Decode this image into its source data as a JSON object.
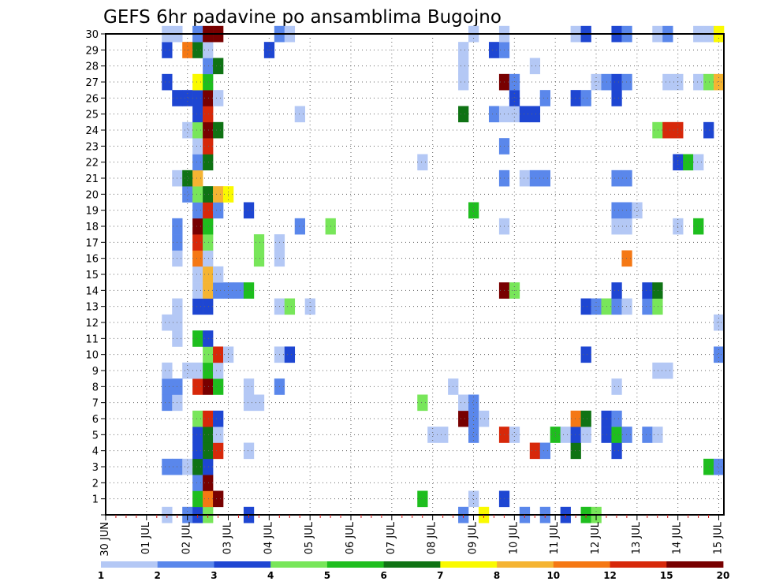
{
  "chart_data": {
    "type": "heatmap",
    "title": "GEFS 6hr padavine po ansamblima Bugojno",
    "x_tick_labels": [
      "30 JUN",
      "01 JUL",
      "02 JUL",
      "03 JUL",
      "04 JUL",
      "05 JUL",
      "06 JUL",
      "07 JUL",
      "08 JUL",
      "09 JUL",
      "10 JUL",
      "11 JUL",
      "12 JUL",
      "13 JUL",
      "14 JUL",
      "15 JUL"
    ],
    "y_tick_labels": [
      "1",
      "2",
      "3",
      "4",
      "5",
      "6",
      "7",
      "8",
      "9",
      "10",
      "11",
      "12",
      "13",
      "14",
      "15",
      "16",
      "17",
      "18",
      "19",
      "20",
      "21",
      "22",
      "23",
      "24",
      "25",
      "26",
      "27",
      "28",
      "29",
      "30"
    ],
    "x_step": "6hr",
    "x_range_steps": [
      0,
      60
    ],
    "y_range": [
      0,
      30
    ],
    "grid": true,
    "colorbar": {
      "labels": [
        "1",
        "2",
        "3",
        "4",
        "5",
        "6",
        "7",
        "8",
        "10",
        "12",
        "15",
        "20"
      ],
      "colors": [
        "#b4c8f5",
        "#5a87eb",
        "#1e46d2",
        "#78e65a",
        "#1ebe1e",
        "#0f7314",
        "#fafa00",
        "#f5b432",
        "#f57814",
        "#d7280a",
        "#780000"
      ]
    },
    "cells": [
      [
        0,
        6,
        1
      ],
      [
        0,
        8,
        2
      ],
      [
        0,
        9,
        3
      ],
      [
        0,
        10,
        4
      ],
      [
        0,
        14,
        3
      ],
      [
        0,
        35,
        2
      ],
      [
        0,
        37,
        7
      ],
      [
        0,
        41,
        2
      ],
      [
        0,
        43,
        2
      ],
      [
        0,
        45,
        3
      ],
      [
        0,
        47,
        5
      ],
      [
        0,
        48,
        4
      ],
      [
        1,
        9,
        5
      ],
      [
        1,
        10,
        9
      ],
      [
        1,
        11,
        11
      ],
      [
        1,
        31,
        5
      ],
      [
        1,
        36,
        1
      ],
      [
        1,
        39,
        3
      ],
      [
        2,
        9,
        2
      ],
      [
        2,
        10,
        11
      ],
      [
        3,
        6,
        2
      ],
      [
        3,
        7,
        2
      ],
      [
        3,
        8,
        1
      ],
      [
        3,
        9,
        6
      ],
      [
        3,
        10,
        3
      ],
      [
        3,
        59,
        5
      ],
      [
        3,
        60,
        2
      ],
      [
        4,
        9,
        3
      ],
      [
        4,
        10,
        6
      ],
      [
        4,
        11,
        10
      ],
      [
        4,
        14,
        1
      ],
      [
        4,
        42,
        10
      ],
      [
        4,
        43,
        2
      ],
      [
        4,
        46,
        6
      ],
      [
        4,
        50,
        3
      ],
      [
        5,
        9,
        3
      ],
      [
        5,
        10,
        6
      ],
      [
        5,
        11,
        1
      ],
      [
        5,
        32,
        1
      ],
      [
        5,
        33,
        1
      ],
      [
        5,
        36,
        2
      ],
      [
        5,
        39,
        10
      ],
      [
        5,
        40,
        1
      ],
      [
        5,
        44,
        5
      ],
      [
        5,
        45,
        1
      ],
      [
        5,
        46,
        3
      ],
      [
        5,
        47,
        1
      ],
      [
        5,
        49,
        3
      ],
      [
        5,
        50,
        5
      ],
      [
        5,
        51,
        2
      ],
      [
        5,
        53,
        2
      ],
      [
        5,
        54,
        1
      ],
      [
        6,
        9,
        4
      ],
      [
        6,
        10,
        10
      ],
      [
        6,
        11,
        3
      ],
      [
        6,
        35,
        11
      ],
      [
        6,
        36,
        2
      ],
      [
        6,
        37,
        1
      ],
      [
        6,
        46,
        9
      ],
      [
        6,
        47,
        6
      ],
      [
        6,
        49,
        3
      ],
      [
        6,
        50,
        2
      ],
      [
        7,
        6,
        2
      ],
      [
        7,
        7,
        1
      ],
      [
        7,
        14,
        1
      ],
      [
        7,
        15,
        1
      ],
      [
        7,
        31,
        4
      ],
      [
        7,
        35,
        1
      ],
      [
        7,
        36,
        2
      ],
      [
        8,
        6,
        2
      ],
      [
        8,
        7,
        2
      ],
      [
        8,
        9,
        10
      ],
      [
        8,
        10,
        11
      ],
      [
        8,
        11,
        5
      ],
      [
        8,
        14,
        1
      ],
      [
        8,
        17,
        2
      ],
      [
        8,
        34,
        1
      ],
      [
        8,
        50,
        1
      ],
      [
        9,
        6,
        1
      ],
      [
        9,
        8,
        1
      ],
      [
        9,
        9,
        1
      ],
      [
        9,
        10,
        5
      ],
      [
        9,
        11,
        1
      ],
      [
        9,
        54,
        1
      ],
      [
        9,
        55,
        1
      ],
      [
        10,
        10,
        4
      ],
      [
        10,
        11,
        10
      ],
      [
        10,
        12,
        1
      ],
      [
        10,
        17,
        1
      ],
      [
        10,
        18,
        3
      ],
      [
        10,
        47,
        3
      ],
      [
        10,
        60,
        2
      ],
      [
        11,
        7,
        1
      ],
      [
        11,
        9,
        5
      ],
      [
        11,
        10,
        3
      ],
      [
        12,
        6,
        1
      ],
      [
        12,
        7,
        1
      ],
      [
        12,
        60,
        1
      ],
      [
        13,
        7,
        1
      ],
      [
        13,
        9,
        3
      ],
      [
        13,
        10,
        3
      ],
      [
        13,
        17,
        1
      ],
      [
        13,
        18,
        4
      ],
      [
        13,
        20,
        1
      ],
      [
        13,
        47,
        3
      ],
      [
        13,
        48,
        2
      ],
      [
        13,
        49,
        4
      ],
      [
        13,
        50,
        2
      ],
      [
        13,
        51,
        1
      ],
      [
        13,
        53,
        2
      ],
      [
        13,
        54,
        4
      ],
      [
        14,
        9,
        1
      ],
      [
        14,
        10,
        8
      ],
      [
        14,
        11,
        2
      ],
      [
        14,
        12,
        2
      ],
      [
        14,
        13,
        2
      ],
      [
        14,
        14,
        5
      ],
      [
        14,
        39,
        11
      ],
      [
        14,
        40,
        4
      ],
      [
        14,
        50,
        3
      ],
      [
        14,
        53,
        3
      ],
      [
        14,
        54,
        6
      ],
      [
        15,
        9,
        1
      ],
      [
        15,
        10,
        8
      ],
      [
        15,
        11,
        1
      ],
      [
        16,
        7,
        1
      ],
      [
        16,
        9,
        9
      ],
      [
        16,
        10,
        1
      ],
      [
        16,
        15,
        4
      ],
      [
        16,
        17,
        1
      ],
      [
        16,
        51,
        9
      ],
      [
        17,
        7,
        2
      ],
      [
        17,
        9,
        10
      ],
      [
        17,
        10,
        4
      ],
      [
        17,
        15,
        4
      ],
      [
        17,
        17,
        1
      ],
      [
        18,
        7,
        2
      ],
      [
        18,
        9,
        11
      ],
      [
        18,
        10,
        5
      ],
      [
        18,
        19,
        2
      ],
      [
        18,
        22,
        4
      ],
      [
        18,
        39,
        1
      ],
      [
        18,
        50,
        1
      ],
      [
        18,
        51,
        1
      ],
      [
        18,
        56,
        1
      ],
      [
        18,
        58,
        5
      ],
      [
        19,
        9,
        2
      ],
      [
        19,
        10,
        10
      ],
      [
        19,
        11,
        2
      ],
      [
        19,
        14,
        3
      ],
      [
        19,
        36,
        5
      ],
      [
        19,
        50,
        2
      ],
      [
        19,
        51,
        2
      ],
      [
        19,
        52,
        1
      ],
      [
        20,
        8,
        2
      ],
      [
        20,
        9,
        4
      ],
      [
        20,
        10,
        6
      ],
      [
        20,
        11,
        8
      ],
      [
        20,
        12,
        7
      ],
      [
        21,
        7,
        1
      ],
      [
        21,
        8,
        6
      ],
      [
        21,
        9,
        8
      ],
      [
        21,
        39,
        2
      ],
      [
        21,
        41,
        1
      ],
      [
        21,
        42,
        2
      ],
      [
        21,
        43,
        2
      ],
      [
        21,
        50,
        2
      ],
      [
        21,
        51,
        2
      ],
      [
        22,
        9,
        2
      ],
      [
        22,
        10,
        6
      ],
      [
        22,
        31,
        1
      ],
      [
        22,
        56,
        3
      ],
      [
        22,
        57,
        5
      ],
      [
        22,
        58,
        1
      ],
      [
        23,
        9,
        1
      ],
      [
        23,
        10,
        10
      ],
      [
        23,
        39,
        2
      ],
      [
        24,
        8,
        1
      ],
      [
        24,
        9,
        4
      ],
      [
        24,
        10,
        11
      ],
      [
        24,
        11,
        6
      ],
      [
        24,
        54,
        4
      ],
      [
        24,
        55,
        10
      ],
      [
        24,
        56,
        10
      ],
      [
        24,
        59,
        3
      ],
      [
        25,
        9,
        3
      ],
      [
        25,
        10,
        10
      ],
      [
        25,
        19,
        1
      ],
      [
        25,
        35,
        6
      ],
      [
        25,
        38,
        2
      ],
      [
        25,
        39,
        1
      ],
      [
        25,
        40,
        1
      ],
      [
        25,
        41,
        3
      ],
      [
        25,
        42,
        3
      ],
      [
        26,
        7,
        3
      ],
      [
        26,
        8,
        3
      ],
      [
        26,
        9,
        3
      ],
      [
        26,
        10,
        11
      ],
      [
        26,
        11,
        1
      ],
      [
        26,
        40,
        3
      ],
      [
        26,
        43,
        2
      ],
      [
        26,
        46,
        3
      ],
      [
        26,
        47,
        2
      ],
      [
        26,
        50,
        3
      ],
      [
        27,
        6,
        3
      ],
      [
        27,
        9,
        7
      ],
      [
        27,
        10,
        5
      ],
      [
        27,
        35,
        1
      ],
      [
        27,
        39,
        11
      ],
      [
        27,
        40,
        2
      ],
      [
        27,
        48,
        1
      ],
      [
        27,
        49,
        2
      ],
      [
        27,
        50,
        3
      ],
      [
        27,
        51,
        2
      ],
      [
        27,
        55,
        1
      ],
      [
        27,
        56,
        1
      ],
      [
        27,
        58,
        1
      ],
      [
        27,
        59,
        4
      ],
      [
        27,
        60,
        8
      ],
      [
        28,
        10,
        2
      ],
      [
        28,
        11,
        6
      ],
      [
        28,
        35,
        1
      ],
      [
        28,
        42,
        1
      ],
      [
        29,
        6,
        3
      ],
      [
        29,
        8,
        9
      ],
      [
        29,
        9,
        6
      ],
      [
        29,
        10,
        1
      ],
      [
        29,
        16,
        3
      ],
      [
        29,
        35,
        1
      ],
      [
        29,
        38,
        3
      ],
      [
        29,
        39,
        2
      ],
      [
        30,
        6,
        1
      ],
      [
        30,
        7,
        1
      ],
      [
        30,
        9,
        2
      ],
      [
        30,
        10,
        11
      ],
      [
        30,
        11,
        11
      ],
      [
        30,
        17,
        2
      ],
      [
        30,
        18,
        1
      ],
      [
        30,
        36,
        1
      ],
      [
        30,
        39,
        1
      ],
      [
        30,
        46,
        1
      ],
      [
        30,
        47,
        3
      ],
      [
        30,
        50,
        3
      ],
      [
        30,
        51,
        2
      ],
      [
        30,
        54,
        1
      ],
      [
        30,
        55,
        2
      ],
      [
        30,
        58,
        1
      ],
      [
        30,
        59,
        1
      ],
      [
        30,
        60,
        7
      ]
    ]
  }
}
